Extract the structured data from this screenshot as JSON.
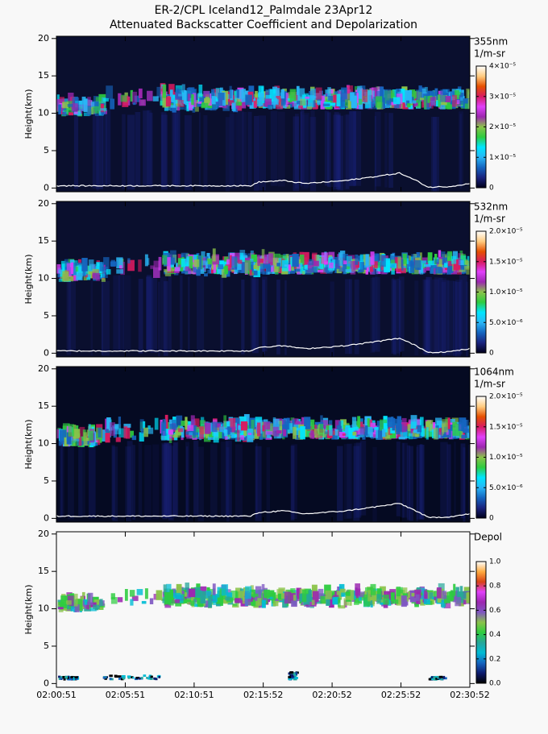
{
  "chart_data": [
    {
      "type": "heatmap",
      "title": "ER-2/CPL Iceland12_Palmdale 23Apr12",
      "subtitle": "Attenuated Backscatter Coefficient and Depolarization",
      "ylabel": "Height(km)",
      "ylim": [
        -0.5,
        20.3
      ],
      "yticks": [
        0,
        5,
        10,
        15,
        20
      ],
      "background": "#0a0f2e",
      "colorbar": {
        "label": "355nm",
        "unit": "1/m-sr",
        "clim": [
          0,
          4e-05
        ],
        "ticks": [
          0,
          {
            "value": 1e-05,
            "label": "1×10⁻⁵"
          },
          {
            "value": 2e-05,
            "label": "2×10⁻⁵"
          },
          {
            "value": 3e-05,
            "label": "3×10⁻⁵"
          },
          {
            "value": 4e-05,
            "label": "4×10⁻⁵"
          }
        ],
        "colors": [
          "#00001a",
          "#1a237e",
          "#1565c0",
          "#29b6f6",
          "#00e5ff",
          "#2ecc40",
          "#8bc34a",
          "#9c27b0",
          "#e040fb",
          "#d81b60",
          "#e65100",
          "#ffcc80",
          "#ffffff"
        ]
      }
    },
    {
      "type": "heatmap",
      "ylabel": "Height(km)",
      "ylim": [
        -0.5,
        20.3
      ],
      "yticks": [
        0,
        5,
        10,
        15,
        20
      ],
      "background": "#0a0f2e",
      "colorbar": {
        "label": "532nm",
        "unit": "1/m-sr",
        "clim": [
          0,
          2e-05
        ],
        "ticks": [
          0,
          {
            "value": 5e-06,
            "label": "5.0×10⁻⁶"
          },
          {
            "value": 1e-05,
            "label": "1.0×10⁻⁵"
          },
          {
            "value": 1.5e-05,
            "label": "1.5×10⁻⁵"
          },
          {
            "value": 2e-05,
            "label": "2.0×10⁻⁵"
          }
        ],
        "colors": [
          "#00001a",
          "#1a237e",
          "#1565c0",
          "#29b6f6",
          "#00e5ff",
          "#2ecc40",
          "#8bc34a",
          "#9c27b0",
          "#e040fb",
          "#d81b60",
          "#e65100",
          "#ffcc80",
          "#ffffff"
        ]
      }
    },
    {
      "type": "heatmap",
      "ylabel": "Height(km)",
      "ylim": [
        -0.5,
        20.3
      ],
      "yticks": [
        0,
        5,
        10,
        15,
        20
      ],
      "background": "#050a22",
      "colorbar": {
        "label": "1064nm",
        "unit": "1/m-sr",
        "clim": [
          0,
          2e-05
        ],
        "ticks": [
          0,
          {
            "value": 5e-06,
            "label": "5.0×10⁻⁶"
          },
          {
            "value": 1e-05,
            "label": "1.0×10⁻⁵"
          },
          {
            "value": 1.5e-05,
            "label": "1.5×10⁻⁵"
          },
          {
            "value": 2e-05,
            "label": "2.0×10⁻⁵"
          }
        ],
        "colors": [
          "#00001a",
          "#1a237e",
          "#1565c0",
          "#29b6f6",
          "#00e5ff",
          "#2ecc40",
          "#8bc34a",
          "#9c27b0",
          "#e040fb",
          "#d81b60",
          "#e65100",
          "#ffcc80",
          "#ffffff"
        ]
      }
    },
    {
      "type": "heatmap",
      "ylabel": "Height(km)",
      "ylim": [
        -0.5,
        20.3
      ],
      "yticks": [
        0,
        5,
        10,
        15,
        20
      ],
      "background": "#f8f8f8",
      "xlim": [
        0,
        1801
      ],
      "xticks": [
        {
          "value": 0,
          "label": "02:00:51"
        },
        {
          "value": 300,
          "label": "02:05:51"
        },
        {
          "value": 600,
          "label": "02:10:51"
        },
        {
          "value": 901,
          "label": "02:15:52"
        },
        {
          "value": 1201,
          "label": "02:20:52"
        },
        {
          "value": 1501,
          "label": "02:25:52"
        },
        {
          "value": 1801,
          "label": "02:30:52"
        }
      ],
      "colorbar": {
        "label": "Depol",
        "clim": [
          0,
          1
        ],
        "ticks": [
          {
            "value": 0,
            "label": "0.0"
          },
          0.2,
          0.4,
          0.6,
          0.8,
          {
            "value": 1,
            "label": "1.0"
          }
        ],
        "colors": [
          "#000000",
          "#0d1b6e",
          "#1565c0",
          "#00bcd4",
          "#26a69a",
          "#2ecc40",
          "#8bc34a",
          "#7e57c2",
          "#9c27b0",
          "#e040fb",
          "#d84315",
          "#ffab40",
          "#ffffff"
        ]
      }
    }
  ]
}
